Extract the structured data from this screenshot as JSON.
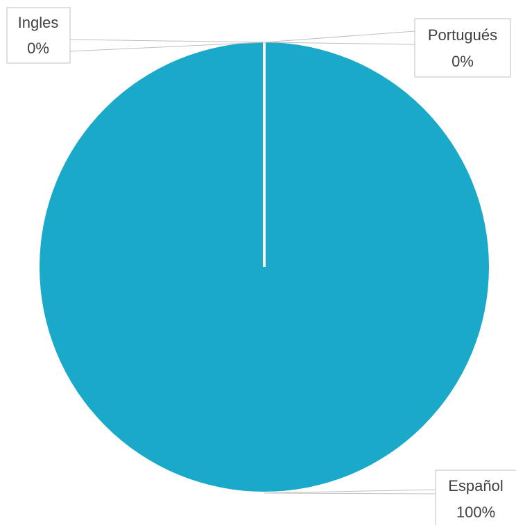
{
  "chart_data": {
    "type": "pie",
    "slices": [
      {
        "label": "Ingles",
        "value": 0,
        "display": "0%"
      },
      {
        "label": "Portugués",
        "value": 0,
        "display": "0%"
      },
      {
        "label": "Español",
        "value": 100,
        "display": "100%"
      }
    ],
    "colors": {
      "slice": "#1aa9c9",
      "divider": "#ffffff",
      "leader": "#bfbfbf",
      "text": "#404040"
    },
    "legend": "none"
  }
}
